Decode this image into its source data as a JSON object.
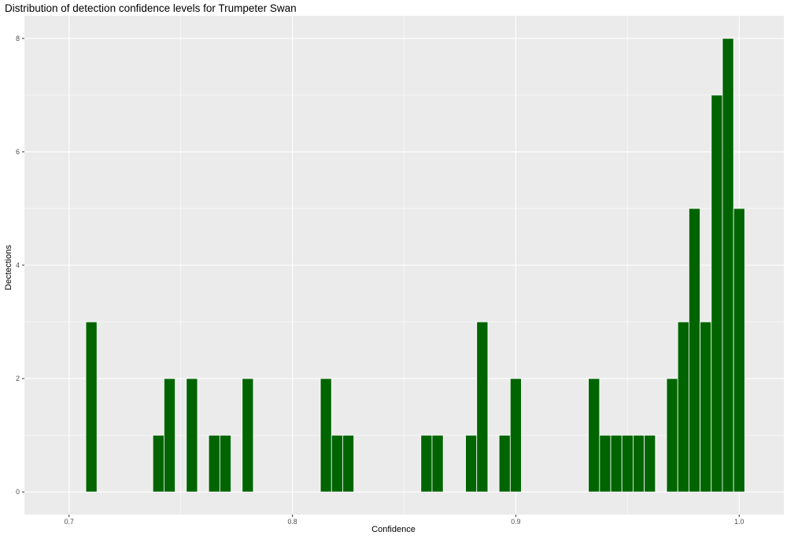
{
  "chart_data": {
    "type": "bar",
    "title": "Distribution of detection confidence levels for Trumpeter Swan",
    "xlabel": "Confidence",
    "ylabel": "Dectections",
    "xlim": [
      0.68,
      1.02
    ],
    "ylim": [
      -0.4,
      8.4
    ],
    "x_ticks": [
      0.7,
      0.8,
      0.9,
      1.0
    ],
    "x_tick_labels": [
      "0.7",
      "0.8",
      "0.9",
      "1.0"
    ],
    "y_ticks": [
      0,
      2,
      4,
      6,
      8
    ],
    "y_tick_labels": [
      "0",
      "2",
      "4",
      "6",
      "8"
    ],
    "bin_width": 0.005,
    "bins": [
      {
        "x": 0.71,
        "count": 3
      },
      {
        "x": 0.74,
        "count": 1
      },
      {
        "x": 0.745,
        "count": 2
      },
      {
        "x": 0.755,
        "count": 2
      },
      {
        "x": 0.765,
        "count": 1
      },
      {
        "x": 0.77,
        "count": 1
      },
      {
        "x": 0.78,
        "count": 2
      },
      {
        "x": 0.815,
        "count": 2
      },
      {
        "x": 0.82,
        "count": 1
      },
      {
        "x": 0.825,
        "count": 1
      },
      {
        "x": 0.86,
        "count": 1
      },
      {
        "x": 0.865,
        "count": 1
      },
      {
        "x": 0.88,
        "count": 1
      },
      {
        "x": 0.885,
        "count": 3
      },
      {
        "x": 0.895,
        "count": 1
      },
      {
        "x": 0.9,
        "count": 2
      },
      {
        "x": 0.935,
        "count": 2
      },
      {
        "x": 0.94,
        "count": 1
      },
      {
        "x": 0.945,
        "count": 1
      },
      {
        "x": 0.95,
        "count": 1
      },
      {
        "x": 0.955,
        "count": 1
      },
      {
        "x": 0.96,
        "count": 1
      },
      {
        "x": 0.97,
        "count": 2
      },
      {
        "x": 0.975,
        "count": 3
      },
      {
        "x": 0.98,
        "count": 5
      },
      {
        "x": 0.985,
        "count": 3
      },
      {
        "x": 0.99,
        "count": 7
      },
      {
        "x": 0.995,
        "count": 8
      },
      {
        "x": 1.0,
        "count": 5
      }
    ],
    "grid": true,
    "legend": "none",
    "colors": {
      "bar_fill": "#006400",
      "bar_outline": "#ffffff",
      "panel_background": "#ebebeb",
      "grid_major": "#ffffff"
    }
  }
}
